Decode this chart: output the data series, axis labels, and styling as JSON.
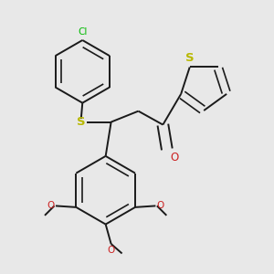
{
  "bg_color": "#e8e8e8",
  "bond_color": "#1a1a1a",
  "bond_width": 1.4,
  "dbo": 0.018,
  "S_color": "#b8b800",
  "Cl_color": "#00bb00",
  "O_color": "#cc2222",
  "font_size": 7.5,
  "fig_size": [
    3.0,
    3.0
  ],
  "dpi": 100,
  "xlim": [
    0.0,
    1.0
  ],
  "ylim": [
    0.0,
    1.0
  ]
}
